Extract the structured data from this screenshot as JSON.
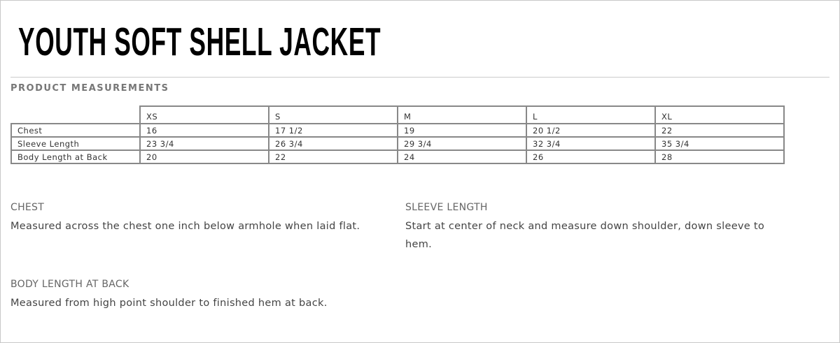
{
  "title": "YOUTH SOFT SHELL JACKET",
  "section_title": "PRODUCT MEASUREMENTS",
  "table": {
    "sizes": [
      "XS",
      "S",
      "M",
      "L",
      "XL"
    ],
    "rows": [
      {
        "label": "Chest",
        "values": [
          "16",
          "17 1/2",
          "19",
          "20 1/2",
          "22"
        ]
      },
      {
        "label": "Sleeve Length",
        "values": [
          "23 3/4",
          "26 3/4",
          "29 3/4",
          "32 3/4",
          "35 3/4"
        ]
      },
      {
        "label": "Body Length at Back",
        "values": [
          "20",
          "22",
          "24",
          "26",
          "28"
        ]
      }
    ]
  },
  "notes": [
    {
      "heading": "CHEST",
      "text": "Measured across the chest one inch below armhole when laid flat."
    },
    {
      "heading": "SLEEVE LENGTH",
      "text": "Start at center of neck and measure down shoulder, down sleeve to hem."
    },
    {
      "heading": "BODY LENGTH AT BACK",
      "text": "Measured from high point shoulder to finished hem at back."
    }
  ]
}
